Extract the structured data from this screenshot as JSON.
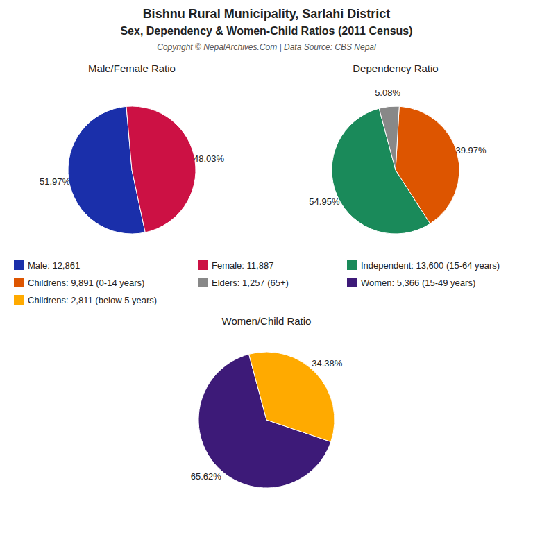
{
  "title": "Bishnu Rural Municipality, Sarlahi District",
  "subtitle": "Sex, Dependency & Women-Child Ratios (2011 Census)",
  "annotations": [
    "Copyright © NepalArchives.Com | Data Source: CBS Nepal"
  ],
  "chart_data": [
    {
      "type": "pie",
      "title": "Male/Female Ratio",
      "categories": [
        "Male: 12,861",
        "Female: 11,887"
      ],
      "values": [
        51.97,
        48.03
      ],
      "value_labels": [
        "51.97%",
        "48.03%"
      ],
      "colors": [
        "#1a2faa",
        "#cc1144"
      ],
      "data_labels": true,
      "legend": "bottom"
    },
    {
      "type": "pie",
      "title": "Dependency Ratio",
      "categories": [
        "Independent: 13,600 (15-64 years)",
        "Childrens: 9,891 (0-14 years)",
        "Elders: 1,257 (65+)"
      ],
      "values": [
        54.95,
        39.97,
        5.08
      ],
      "value_labels": [
        "54.95%",
        "39.97%",
        "5.08%"
      ],
      "colors": [
        "#1a8a5a",
        "#dd5500",
        "#888888"
      ],
      "data_labels": true,
      "legend": "bottom"
    },
    {
      "type": "pie",
      "title": "Women/Child Ratio",
      "categories": [
        "Women: 5,366 (15-49 years)",
        "Childrens: 2,811 (below 5 years)"
      ],
      "values": [
        65.62,
        34.38
      ],
      "value_labels": [
        "65.62%",
        "34.38%"
      ],
      "colors": [
        "#3d1a78",
        "#ffaa00"
      ],
      "data_labels": true,
      "legend": "bottom"
    }
  ]
}
